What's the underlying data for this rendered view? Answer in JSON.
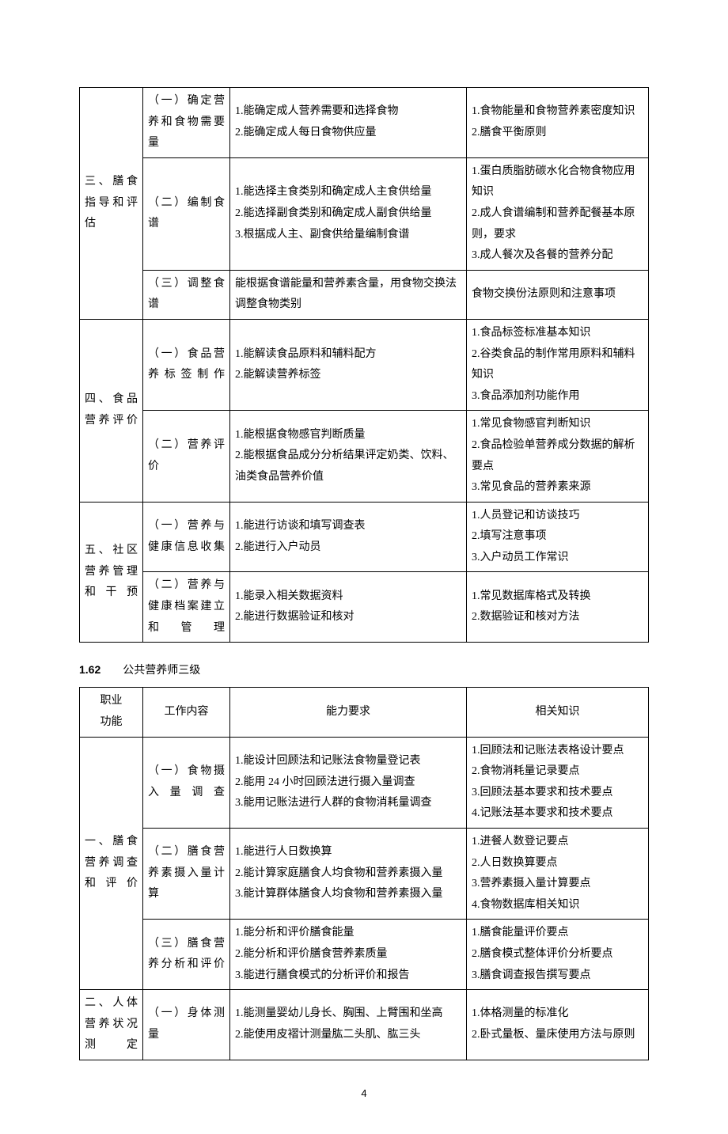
{
  "table1": {
    "rows": [
      {
        "func": "三、膳食指导和评估",
        "funcRowspan": 3,
        "work": "（一）确定营养和食物需要量",
        "req": "1.能确定成人营养需要和选择食物\n2.能确定成人每日食物供应量",
        "know": "1.食物能量和食物营养素密度知识\n2.膳食平衡原则"
      },
      {
        "work": "（二）编制食谱",
        "req": "1.能选择主食类别和确定成人主食供给量\n2.能选择副食类别和确定成人副食供给量\n3.根据成人主、副食供给量编制食谱",
        "know": "1.蛋白质脂肪碳水化合物食物应用知识\n2.成人食谱编制和营养配餐基本原则，要求\n3.成人餐次及各餐的营养分配"
      },
      {
        "work": "（三）调整食谱",
        "req": "能根据食谱能量和营养素含量，用食物交换法调整食物类别",
        "know": "食物交换份法原则和注意事项"
      },
      {
        "func": "四、食品营养评价",
        "funcRowspan": 2,
        "work": "（一）食品营养标签制作",
        "req": "1.能解读食品原料和辅料配方\n2.能解读营养标签",
        "know": "1.食品标签标准基本知识\n2.谷类食品的制作常用原料和辅料知识\n3.食品添加剂功能作用"
      },
      {
        "work": "（二）营养评价",
        "req": "1.能根据食物感官判断质量\n2.能根据食品成分分析结果评定奶类、饮料、油类食品营养价值",
        "know": "1.常见食物感官判断知识\n2.食品检验单营养成分数据的解析要点\n3.常见食品的营养素来源"
      },
      {
        "func": "五、社区营养管理和干预",
        "funcRowspan": 2,
        "work": "（一）营养与健康信息收集",
        "req": "1.能进行访谈和填写调查表\n2.能进行入户动员",
        "know": "1.人员登记和访谈技巧\n2.填写注意事项\n3.入户动员工作常识"
      },
      {
        "work": "（二）营养与健康档案建立和管理",
        "req": "1.能录入相关数据资料\n2.能进行数据验证和核对",
        "know": "1.常见数据库格式及转换\n2.数据验证和核对方法"
      }
    ]
  },
  "section": {
    "num": "1.62",
    "title": "公共营养师三级"
  },
  "table2": {
    "headers": {
      "func": "职业\n功能",
      "work": "工作内容",
      "req": "能力要求",
      "know": "相关知识"
    },
    "rows": [
      {
        "func": "一、膳食营养调查和评价",
        "funcRowspan": 3,
        "work": "（一）食物摄入量调查",
        "req": "1.能设计回顾法和记账法食物量登记表\n2.能用 24 小时回顾法进行摄入量调查\n3.能用记账法进行人群的食物消耗量调查",
        "know": "1.回顾法和记账法表格设计要点\n2.食物消耗量记录要点\n3.回顾法基本要求和技术要点\n4.记账法基本要求和技术要点"
      },
      {
        "work": "（二）膳食营养素摄入量计算",
        "req": "1.能进行人日数换算\n2.能计算家庭膳食人均食物和营养素摄入量\n3.能计算群体膳食人均食物和营养素摄入量",
        "know": "1.进餐人数登记要点\n2.人日数换算要点\n3.营养素摄入量计算要点\n4.食物数据库相关知识"
      },
      {
        "work": "（三）膳食营养分析和评价",
        "req": "1.能分析和评价膳食能量\n2.能分析和评价膳食营养素质量\n3.能进行膳食模式的分析评价和报告",
        "know": "1.膳食能量评价要点\n2.膳食模式整体评价分析要点\n3.膳食调查报告撰写要点"
      },
      {
        "func": "二、人体营养状况测定",
        "funcRowspan": 1,
        "work": "（一）身体测量",
        "req": "1.能测量婴幼儿身长、胸围、上臂围和坐高\n2.能使用皮褶计测量肱二头肌、肱三头",
        "know": "1.体格测量的标准化\n2.卧式量板、量床使用方法与原则"
      }
    ]
  },
  "pageNumber": "4"
}
